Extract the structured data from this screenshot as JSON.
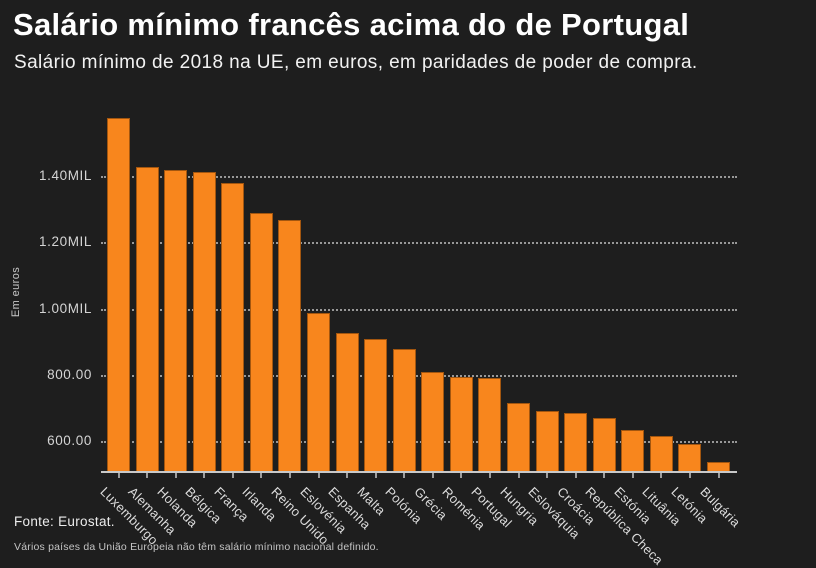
{
  "header": {
    "title": "Salário mínimo francês acima do de Portugal",
    "subtitle": "Salário mínimo de 2018 na UE, em euros, em paridades de poder de compra."
  },
  "chart_data": {
    "type": "bar",
    "title": "Salário mínimo francês acima do de Portugal",
    "subtitle": "Salário mínimo de 2018 na UE, em euros, em paridades de poder de compra.",
    "xlabel": "",
    "ylabel": "Em euros",
    "categories": [
      "Luxemburgo",
      "Alemanha",
      "Holanda",
      "Bélgica",
      "França",
      "Irlanda",
      "Reino Unido",
      "Eslovénia",
      "Espanha",
      "Malta",
      "Polónia",
      "Grécia",
      "Roménia",
      "Portugal",
      "Hungria",
      "Eslováquia",
      "Croácia",
      "República Checa",
      "Estónia",
      "Lituânia",
      "Letónia",
      "Bulgária"
    ],
    "values": [
      1575,
      1425,
      1416,
      1410,
      1377,
      1287,
      1268,
      986,
      928,
      910,
      878,
      810,
      794,
      792,
      716,
      692,
      686,
      670,
      634,
      616,
      593,
      538
    ],
    "yticks": [
      {
        "value": 1400,
        "label": "1.40MIL"
      },
      {
        "value": 1200,
        "label": "1.20MIL"
      },
      {
        "value": 1000,
        "label": "1.00MIL"
      },
      {
        "value": 800,
        "label": "800.00"
      },
      {
        "value": 600,
        "label": "600.00"
      }
    ],
    "ylim": [
      511,
      1619
    ],
    "grid": "horizontal-dotted",
    "legend": "none",
    "bar_color": "#F8861D",
    "background_color": "#1E1E1E",
    "axis_color": "#C9C9C9",
    "gridline_color": "#989898"
  },
  "footer": {
    "source": "Fonte: Eurostat.",
    "note": "Vários países da União Europeia não têm salário mínimo nacional definido."
  }
}
